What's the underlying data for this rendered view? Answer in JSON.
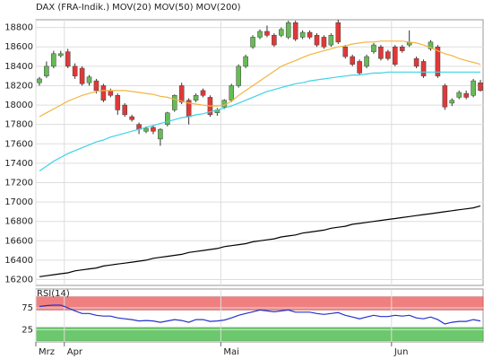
{
  "chart_data": [
    {
      "type": "candlestick",
      "series": [
        {
          "name": "DAX (FRA-Indik.)",
          "color": "#e05050",
          "up_color": "#66bb55",
          "down_color": "#e03838",
          "open": [
            18230,
            18300,
            18400,
            18510,
            18550,
            18400,
            18380,
            18230,
            18250,
            18200,
            18150,
            18100,
            18000,
            17880,
            17800,
            17730,
            17770,
            17650,
            17800,
            17950,
            18200,
            18050,
            18050,
            18150,
            18080,
            17920,
            17980,
            18050,
            18200,
            18400,
            18600,
            18700,
            18760,
            18720,
            18720,
            18700,
            18850,
            18700,
            18750,
            18720,
            18700,
            18620,
            18850,
            18600,
            18500,
            18450,
            18400,
            18550,
            18600,
            18550,
            18600,
            18600,
            18620,
            18480,
            18450,
            18580,
            18600,
            18200,
            18020,
            18080,
            18120,
            18100,
            18230
          ],
          "high": [
            18290,
            18450,
            18560,
            18560,
            18580,
            18430,
            18400,
            18310,
            18270,
            18220,
            18170,
            18120,
            18020,
            17900,
            17820,
            17780,
            17790,
            17760,
            17930,
            18110,
            18230,
            18070,
            18120,
            18170,
            18100,
            17970,
            18060,
            18220,
            18420,
            18520,
            18720,
            18780,
            18820,
            18740,
            18800,
            18870,
            18870,
            18770,
            18770,
            18740,
            18720,
            18740,
            18880,
            18620,
            18520,
            18470,
            18520,
            18640,
            18620,
            18570,
            18620,
            18620,
            18770,
            18500,
            18470,
            18670,
            18620,
            18220,
            18070,
            18150,
            18150,
            18270,
            18260
          ],
          "low": [
            18200,
            18280,
            18380,
            18490,
            18380,
            18270,
            18200,
            18200,
            18120,
            18030,
            18080,
            17900,
            17880,
            17830,
            17700,
            17710,
            17700,
            17580,
            17780,
            17930,
            18010,
            17800,
            18030,
            18080,
            17880,
            17890,
            17960,
            18030,
            18180,
            18380,
            18580,
            18680,
            18700,
            18600,
            18700,
            18680,
            18660,
            18680,
            18680,
            18600,
            18580,
            18600,
            18630,
            18480,
            18400,
            18310,
            18380,
            18530,
            18460,
            18460,
            18400,
            18540,
            18600,
            18380,
            18280,
            18560,
            18280,
            17950,
            17990,
            18060,
            18060,
            18080,
            18140
          ],
          "close": [
            18270,
            18400,
            18530,
            18530,
            18400,
            18300,
            18220,
            18290,
            18150,
            18050,
            18100,
            17950,
            17900,
            17850,
            17750,
            17760,
            17730,
            17750,
            17920,
            18100,
            18030,
            17880,
            18100,
            18100,
            17900,
            17950,
            18050,
            18200,
            18400,
            18500,
            18700,
            18760,
            18720,
            18620,
            18780,
            18850,
            18680,
            18750,
            18700,
            18620,
            18600,
            18720,
            18650,
            18500,
            18420,
            18330,
            18500,
            18620,
            18480,
            18480,
            18420,
            18560,
            18650,
            18400,
            18300,
            18650,
            18300,
            17980,
            18050,
            18130,
            18080,
            18250,
            18150
          ]
        },
        {
          "name": "MOV(20)",
          "color": "#f2b640",
          "values": [
            17880,
            17920,
            17960,
            18000,
            18040,
            18070,
            18100,
            18120,
            18140,
            18150,
            18150,
            18150,
            18150,
            18140,
            18130,
            18120,
            18110,
            18090,
            18080,
            18060,
            18040,
            18020,
            18010,
            18000,
            17990,
            17990,
            18000,
            18040,
            18100,
            18150,
            18200,
            18250,
            18300,
            18350,
            18400,
            18430,
            18460,
            18490,
            18520,
            18540,
            18560,
            18580,
            18600,
            18610,
            18630,
            18640,
            18650,
            18650,
            18660,
            18660,
            18660,
            18660,
            18650,
            18640,
            18620,
            18590,
            18560,
            18530,
            18510,
            18480,
            18460,
            18440,
            18420
          ]
        },
        {
          "name": "MOV(50)",
          "color": "#3fd3e6",
          "values": [
            17320,
            17370,
            17420,
            17460,
            17500,
            17530,
            17560,
            17590,
            17620,
            17640,
            17670,
            17690,
            17710,
            17730,
            17750,
            17770,
            17790,
            17810,
            17830,
            17850,
            17870,
            17880,
            17900,
            17910,
            17930,
            17950,
            17970,
            17990,
            18020,
            18050,
            18080,
            18110,
            18140,
            18160,
            18180,
            18200,
            18220,
            18230,
            18250,
            18260,
            18270,
            18280,
            18290,
            18300,
            18310,
            18310,
            18320,
            18330,
            18330,
            18340,
            18340,
            18340,
            18340,
            18340,
            18340,
            18340,
            18340,
            18340,
            18340,
            18340,
            18340,
            18340,
            18340
          ]
        },
        {
          "name": "MOV(200)",
          "color": "#000000",
          "values": [
            16230,
            16240,
            16250,
            16260,
            16270,
            16290,
            16300,
            16310,
            16320,
            16340,
            16350,
            16360,
            16370,
            16380,
            16390,
            16400,
            16420,
            16430,
            16440,
            16450,
            16460,
            16480,
            16490,
            16500,
            16510,
            16520,
            16540,
            16550,
            16560,
            16570,
            16590,
            16600,
            16610,
            16620,
            16640,
            16650,
            16660,
            16680,
            16690,
            16700,
            16710,
            16730,
            16740,
            16750,
            16770,
            16780,
            16790,
            16800,
            16810,
            16820,
            16830,
            16840,
            16850,
            16860,
            16870,
            16880,
            16890,
            16900,
            16910,
            16920,
            16930,
            16940,
            16960
          ]
        }
      ],
      "ylim": [
        16140,
        18880
      ],
      "yticks": [
        16200,
        16400,
        16600,
        16800,
        17000,
        17200,
        17400,
        17600,
        17800,
        18000,
        18200,
        18400,
        18600,
        18800
      ],
      "grid": true
    },
    {
      "type": "line",
      "series": [
        {
          "name": "RSI(14)",
          "color": "#2233cc",
          "values": [
            78,
            80,
            81,
            81,
            75,
            68,
            62,
            62,
            58,
            56,
            56,
            52,
            50,
            48,
            45,
            46,
            45,
            42,
            45,
            48,
            46,
            42,
            48,
            48,
            44,
            45,
            47,
            52,
            58,
            62,
            66,
            70,
            68,
            66,
            68,
            70,
            65,
            65,
            65,
            62,
            60,
            62,
            64,
            58,
            54,
            50,
            54,
            58,
            55,
            55,
            58,
            56,
            58,
            52,
            50,
            54,
            48,
            38,
            42,
            44,
            44,
            48,
            45
          ]
        }
      ],
      "categories": [
        "Mrz",
        null,
        null,
        null,
        "Apr",
        null,
        null,
        null,
        null,
        null,
        null,
        null,
        null,
        null,
        null,
        null,
        null,
        null,
        null,
        null,
        null,
        null,
        null,
        null,
        null,
        null,
        "Mai",
        null,
        null,
        null,
        null,
        null,
        null,
        null,
        null,
        null,
        null,
        null,
        null,
        null,
        null,
        null,
        null,
        null,
        null,
        null,
        null,
        null,
        null,
        null,
        "Jun",
        null,
        null,
        null,
        null,
        null,
        null,
        null,
        null,
        null,
        null,
        null,
        null
      ],
      "ylim": [
        -3,
        118
      ],
      "yticks": [
        25,
        75
      ],
      "overbought": [
        70,
        100
      ],
      "overbought_color": "#f08080",
      "oversold": [
        0,
        30
      ],
      "oversold_color": "#6cc86c",
      "grid": true
    }
  ]
}
